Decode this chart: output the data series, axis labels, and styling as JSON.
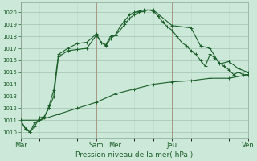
{
  "background_color": "#cce8d8",
  "plot_bg_color": "#cce8d8",
  "grid_major_color": "#a8c8b8",
  "grid_minor_color": "#b8d8c8",
  "line_color": "#1a5e28",
  "vline_color": "#a89888",
  "ylabel_text": "Pression niveau de la mer( hPa )",
  "ylim": [
    1009.5,
    1020.8
  ],
  "yticks": [
    1010,
    1011,
    1012,
    1013,
    1014,
    1015,
    1016,
    1017,
    1018,
    1019,
    1020
  ],
  "xlim": [
    0,
    288
  ],
  "xtick_pos": [
    0,
    96,
    120,
    192,
    288
  ],
  "xtick_labels": [
    "Mar",
    "Sam",
    "Mer",
    "Jeu",
    "Ven"
  ],
  "series1_x": [
    0,
    6,
    12,
    18,
    24,
    30,
    36,
    42,
    48,
    60,
    72,
    84,
    96,
    102,
    108,
    114,
    120,
    126,
    132,
    138,
    144,
    150,
    156,
    162,
    168,
    174,
    180,
    186,
    192,
    198,
    204,
    210,
    216,
    222,
    228,
    234,
    240,
    246,
    252,
    258,
    264,
    270,
    276,
    282,
    288
  ],
  "series1_y": [
    1011.0,
    1010.3,
    1010.0,
    1010.5,
    1011.2,
    1011.3,
    1012.0,
    1013.0,
    1016.3,
    1016.8,
    1016.9,
    1017.0,
    1018.1,
    1017.5,
    1017.2,
    1017.8,
    1018.1,
    1018.5,
    1019.0,
    1019.5,
    1019.8,
    1020.0,
    1020.1,
    1020.2,
    1020.1,
    1019.7,
    1019.2,
    1018.8,
    1018.5,
    1018.0,
    1017.5,
    1017.2,
    1016.8,
    1016.5,
    1016.0,
    1015.5,
    1016.5,
    1016.2,
    1015.8,
    1015.5,
    1015.2,
    1014.8,
    1015.0,
    1014.8,
    1014.8
  ],
  "series2_x": [
    0,
    6,
    12,
    18,
    24,
    30,
    36,
    42,
    48,
    60,
    72,
    84,
    96,
    102,
    108,
    114,
    120,
    126,
    132,
    138,
    144,
    150,
    156,
    162,
    168,
    192,
    204,
    216,
    228,
    240,
    252,
    264,
    276,
    288
  ],
  "series2_y": [
    1011.0,
    1010.3,
    1010.0,
    1010.8,
    1011.0,
    1011.2,
    1012.2,
    1013.5,
    1016.5,
    1017.0,
    1017.4,
    1017.5,
    1018.2,
    1017.5,
    1017.3,
    1018.0,
    1018.1,
    1018.8,
    1019.3,
    1019.8,
    1020.0,
    1020.1,
    1020.2,
    1020.2,
    1020.2,
    1018.9,
    1018.8,
    1018.7,
    1017.2,
    1017.0,
    1015.7,
    1015.9,
    1015.3,
    1015.0
  ],
  "series3_x": [
    0,
    24,
    48,
    72,
    96,
    120,
    144,
    168,
    192,
    216,
    240,
    264,
    288
  ],
  "series3_y": [
    1011.0,
    1011.0,
    1011.5,
    1012.0,
    1012.5,
    1013.2,
    1013.6,
    1014.0,
    1014.2,
    1014.3,
    1014.5,
    1014.5,
    1014.8
  ],
  "vline_positions": [
    0,
    96,
    120,
    192,
    288
  ],
  "figsize": [
    3.2,
    2.0
  ],
  "dpi": 100
}
